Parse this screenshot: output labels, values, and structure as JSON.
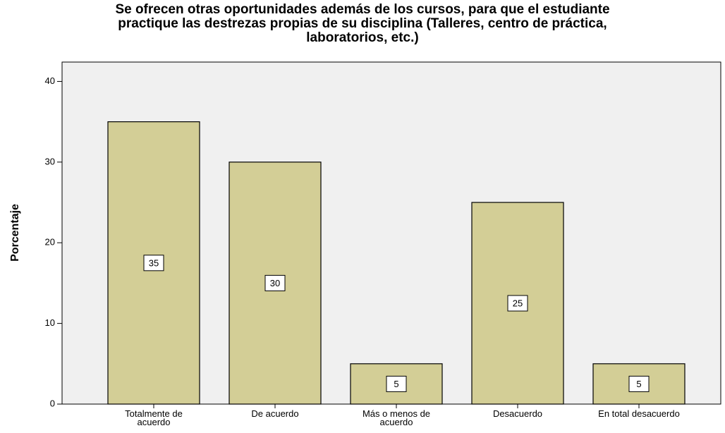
{
  "chart_data": {
    "type": "bar",
    "title": "Se ofrecen otras oportunidades además de los cursos, para que el estudiante\npractique las destrezas propias de su disciplina (Talleres, centro de práctica,\nlaboratorios, etc.)",
    "y_label": "Porcentaje",
    "categories": [
      "Totalmente de\nacuerdo",
      "De acuerdo",
      "Más o menos de\nacuerdo",
      "Desacuerdo",
      "En total desacuerdo"
    ],
    "values": [
      35,
      30,
      5,
      25,
      5
    ],
    "color": "#d3ce96",
    "ylim": [
      0,
      42.4
    ],
    "yticks": [
      0,
      10,
      20,
      30,
      40
    ]
  }
}
